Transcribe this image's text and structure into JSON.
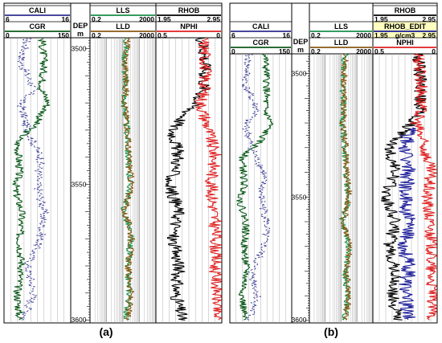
{
  "figure": {
    "captions": [
      "(a)",
      "(b)"
    ]
  },
  "colors": {
    "cali": "#2f2f8f",
    "cgr": "#0b5a1a",
    "lls": "#1a8f4a",
    "lld": "#8a5a14",
    "rhob": "#000000",
    "rhob_edit": "#1a1a9a",
    "nphi": "#e02020",
    "edit_header_bg": "#ffffc0",
    "grid": "#9a9a9a",
    "border": "#000000"
  },
  "chart_data": [
    {
      "type": "line",
      "panel": "(a)",
      "depth_axis": {
        "label": "DEP",
        "unit": "m",
        "range": [
          3496,
          3601
        ],
        "ticks": [
          3500,
          3550,
          3600
        ],
        "inverted": true
      },
      "tracks": [
        {
          "id": "gr",
          "curves": [
            {
              "name": "CALI",
              "min": "6",
              "max": "16",
              "scale": "linear",
              "style": "dashed",
              "color": "#2f2f8f"
            },
            {
              "name": "CGR",
              "min": "0",
              "max": "150",
              "scale": "linear",
              "style": "solid",
              "color": "#0b5a1a"
            }
          ]
        },
        {
          "id": "res",
          "curves": [
            {
              "name": "LLS",
              "min": "0.2",
              "max": "2000",
              "scale": "log",
              "style": "solid",
              "color": "#1a8f4a"
            },
            {
              "name": "LLD",
              "min": "0.2",
              "max": "2000",
              "scale": "log",
              "style": "solid",
              "color": "#8a5a14"
            }
          ]
        },
        {
          "id": "por",
          "curves": [
            {
              "name": "RHOB",
              "min": "1.95",
              "max": "2.95",
              "scale": "linear",
              "style": "solid",
              "color": "#000000"
            },
            {
              "name": "NPHI",
              "min": "0.5",
              "max": "0",
              "scale": "linear",
              "style": "solid",
              "color": "#e02020"
            }
          ]
        }
      ],
      "series": [
        {
          "name": "CALI",
          "depth": [
            3496,
            3505,
            3515,
            3520,
            3530,
            3540,
            3550,
            3560,
            3570,
            3580,
            3590,
            3600
          ],
          "values": [
            9.5,
            8.5,
            10.5,
            8.5,
            9.5,
            11.5,
            11.0,
            12.0,
            11.5,
            9.5,
            10.5,
            9.0
          ]
        },
        {
          "name": "CGR",
          "depth": [
            3496,
            3505,
            3515,
            3520,
            3528,
            3534,
            3545,
            3552,
            3560,
            3570,
            3580,
            3590,
            3600
          ],
          "values": [
            85,
            90,
            85,
            100,
            70,
            30,
            35,
            25,
            40,
            35,
            40,
            30,
            35
          ]
        },
        {
          "name": "LLS",
          "depth": [
            3496,
            3505,
            3515,
            3520,
            3530,
            3540,
            3550,
            3560,
            3570,
            3580,
            3590,
            3600
          ],
          "values": [
            35,
            25,
            28,
            22,
            35,
            40,
            55,
            20,
            60,
            35,
            50,
            30
          ]
        },
        {
          "name": "LLD",
          "depth": [
            3496,
            3505,
            3515,
            3520,
            3530,
            3540,
            3550,
            3560,
            3570,
            3580,
            3590,
            3600
          ],
          "values": [
            38,
            28,
            32,
            25,
            40,
            45,
            65,
            22,
            70,
            40,
            60,
            35
          ]
        },
        {
          "name": "RHOB",
          "depth": [
            3496,
            3505,
            3515,
            3520,
            3530,
            3540,
            3550,
            3560,
            3570,
            3580,
            3590,
            3600
          ],
          "values": [
            2.65,
            2.7,
            2.68,
            2.55,
            2.2,
            2.3,
            2.15,
            2.3,
            2.2,
            2.3,
            2.25,
            2.35
          ]
        },
        {
          "name": "NPHI",
          "depth": [
            3496,
            3505,
            3515,
            3520,
            3530,
            3540,
            3550,
            3560,
            3570,
            3580,
            3590,
            3600
          ],
          "values": [
            0.14,
            0.12,
            0.13,
            0.16,
            0.1,
            0.05,
            0.08,
            0.06,
            0.04,
            0.05,
            0.03,
            0.04
          ]
        }
      ]
    },
    {
      "type": "line",
      "panel": "(b)",
      "depth_axis": {
        "label": "DEP",
        "unit": "m",
        "range": [
          3492,
          3601
        ],
        "ticks": [
          3500,
          3550,
          3600
        ],
        "inverted": true
      },
      "tracks": [
        {
          "id": "gr",
          "curves": [
            {
              "name": "CALI",
              "min": "6",
              "max": "16",
              "scale": "linear",
              "style": "dashed",
              "color": "#2f2f8f"
            },
            {
              "name": "CGR",
              "min": "0",
              "max": "150",
              "scale": "linear",
              "style": "solid",
              "color": "#0b5a1a"
            }
          ]
        },
        {
          "id": "res",
          "curves": [
            {
              "name": "LLS",
              "min": "0.2",
              "max": "2000",
              "scale": "log",
              "style": "solid",
              "color": "#1a8f4a"
            },
            {
              "name": "LLD",
              "min": "0.2",
              "max": "2000",
              "scale": "log",
              "style": "solid",
              "color": "#8a5a14"
            }
          ]
        },
        {
          "id": "por",
          "curves": [
            {
              "name": "RHOB",
              "min": "1.95",
              "max": "2.95",
              "scale": "linear",
              "style": "solid",
              "color": "#000000"
            },
            {
              "name": "RHOB_EDIT",
              "min": "1.95",
              "max": "2.95",
              "unit": "g/cm3",
              "scale": "linear",
              "style": "solid",
              "color": "#1a1a9a",
              "highlight": true
            },
            {
              "name": "NPHI",
              "min": "0.5",
              "max": "0",
              "scale": "linear",
              "style": "solid",
              "color": "#e02020"
            }
          ]
        }
      ],
      "series": [
        {
          "name": "CALI",
          "depth": [
            3492,
            3505,
            3515,
            3520,
            3530,
            3540,
            3550,
            3560,
            3570,
            3580,
            3590,
            3600
          ],
          "values": [
            9.0,
            8.5,
            10.5,
            8.5,
            9.5,
            11.5,
            11.0,
            12.0,
            11.5,
            9.5,
            10.5,
            9.0
          ]
        },
        {
          "name": "CGR",
          "depth": [
            3492,
            3505,
            3515,
            3520,
            3528,
            3534,
            3545,
            3552,
            3560,
            3570,
            3580,
            3590,
            3600
          ],
          "values": [
            85,
            90,
            85,
            100,
            70,
            30,
            35,
            25,
            40,
            35,
            40,
            30,
            35
          ]
        },
        {
          "name": "LLS",
          "depth": [
            3492,
            3505,
            3515,
            3520,
            3530,
            3540,
            3550,
            3560,
            3570,
            3580,
            3590,
            3600
          ],
          "values": [
            35,
            25,
            28,
            22,
            35,
            40,
            55,
            20,
            60,
            35,
            50,
            30
          ]
        },
        {
          "name": "LLD",
          "depth": [
            3492,
            3505,
            3515,
            3520,
            3530,
            3540,
            3550,
            3560,
            3570,
            3580,
            3590,
            3600
          ],
          "values": [
            38,
            28,
            32,
            25,
            40,
            45,
            65,
            22,
            70,
            40,
            60,
            35
          ]
        },
        {
          "name": "RHOB",
          "depth": [
            3492,
            3505,
            3515,
            3520,
            3530,
            3540,
            3550,
            3560,
            3570,
            3580,
            3590,
            3600
          ],
          "values": [
            2.65,
            2.7,
            2.68,
            2.55,
            2.2,
            2.3,
            2.15,
            2.3,
            2.2,
            2.3,
            2.25,
            2.35
          ]
        },
        {
          "name": "RHOB_EDIT",
          "depth": [
            3522,
            3530,
            3540,
            3550,
            3560,
            3570,
            3580,
            3590,
            3600
          ],
          "values": [
            2.55,
            2.45,
            2.5,
            2.45,
            2.5,
            2.45,
            2.5,
            2.45,
            2.5
          ]
        },
        {
          "name": "NPHI",
          "depth": [
            3492,
            3505,
            3515,
            3520,
            3530,
            3540,
            3550,
            3560,
            3570,
            3580,
            3590,
            3600
          ],
          "values": [
            0.14,
            0.12,
            0.13,
            0.16,
            0.1,
            0.05,
            0.08,
            0.06,
            0.04,
            0.05,
            0.03,
            0.04
          ]
        }
      ]
    }
  ]
}
